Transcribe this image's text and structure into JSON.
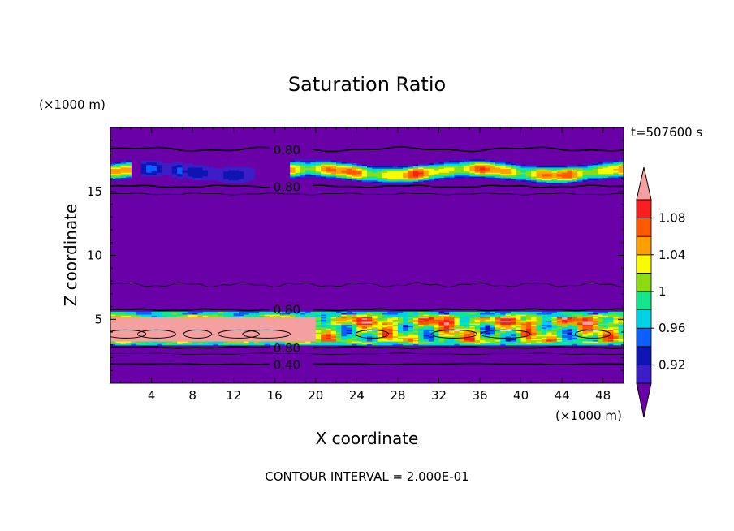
{
  "chart_data": {
    "type": "heatmap",
    "title": "Saturation Ratio",
    "xlabel": "X coordinate",
    "ylabel": "Z coordinate",
    "x_unit": "(×1000 m)",
    "y_unit": "(×1000 m)",
    "time_label": "t=507600 s",
    "footer": "CONTOUR INTERVAL = 2.000E-01",
    "xlim": [
      0,
      50
    ],
    "ylim": [
      0,
      20
    ],
    "x_ticks": [
      4,
      8,
      12,
      16,
      20,
      24,
      28,
      32,
      36,
      40,
      44,
      48
    ],
    "y_ticks": [
      5,
      10,
      15
    ],
    "colorbar": {
      "levels": [
        0.9,
        0.92,
        0.94,
        0.96,
        0.98,
        1.0,
        1.02,
        1.04,
        1.06,
        1.08,
        1.1
      ],
      "tick_labels": [
        "0.92",
        "0.96",
        "1",
        "1.04",
        "1.08"
      ],
      "tick_values": [
        0.92,
        0.96,
        1.0,
        1.04,
        1.08
      ],
      "colors": [
        "#6a00a8",
        "#3c1ec8",
        "#0f14b4",
        "#0a5fff",
        "#00d2e6",
        "#14e68c",
        "#8cdc14",
        "#fafa00",
        "#ffa000",
        "#ff5a00",
        "#fa1e1e",
        "#f5a0a0"
      ]
    },
    "contour_labels": [
      {
        "text": "0.80",
        "x": 17.2,
        "y": 18.3
      },
      {
        "text": "0.80",
        "x": 17.2,
        "y": 15.4
      },
      {
        "text": "0.80",
        "x": 17.2,
        "y": 5.8
      },
      {
        "text": "0.80",
        "x": 17.2,
        "y": 2.8
      },
      {
        "text": "0.40",
        "x": 17.2,
        "y": 1.5
      }
    ],
    "layers": [
      {
        "name": "upper",
        "ymin": 15.6,
        "ymax": 17.6
      },
      {
        "name": "lower",
        "ymin": 2.9,
        "ymax": 5.6
      }
    ]
  }
}
